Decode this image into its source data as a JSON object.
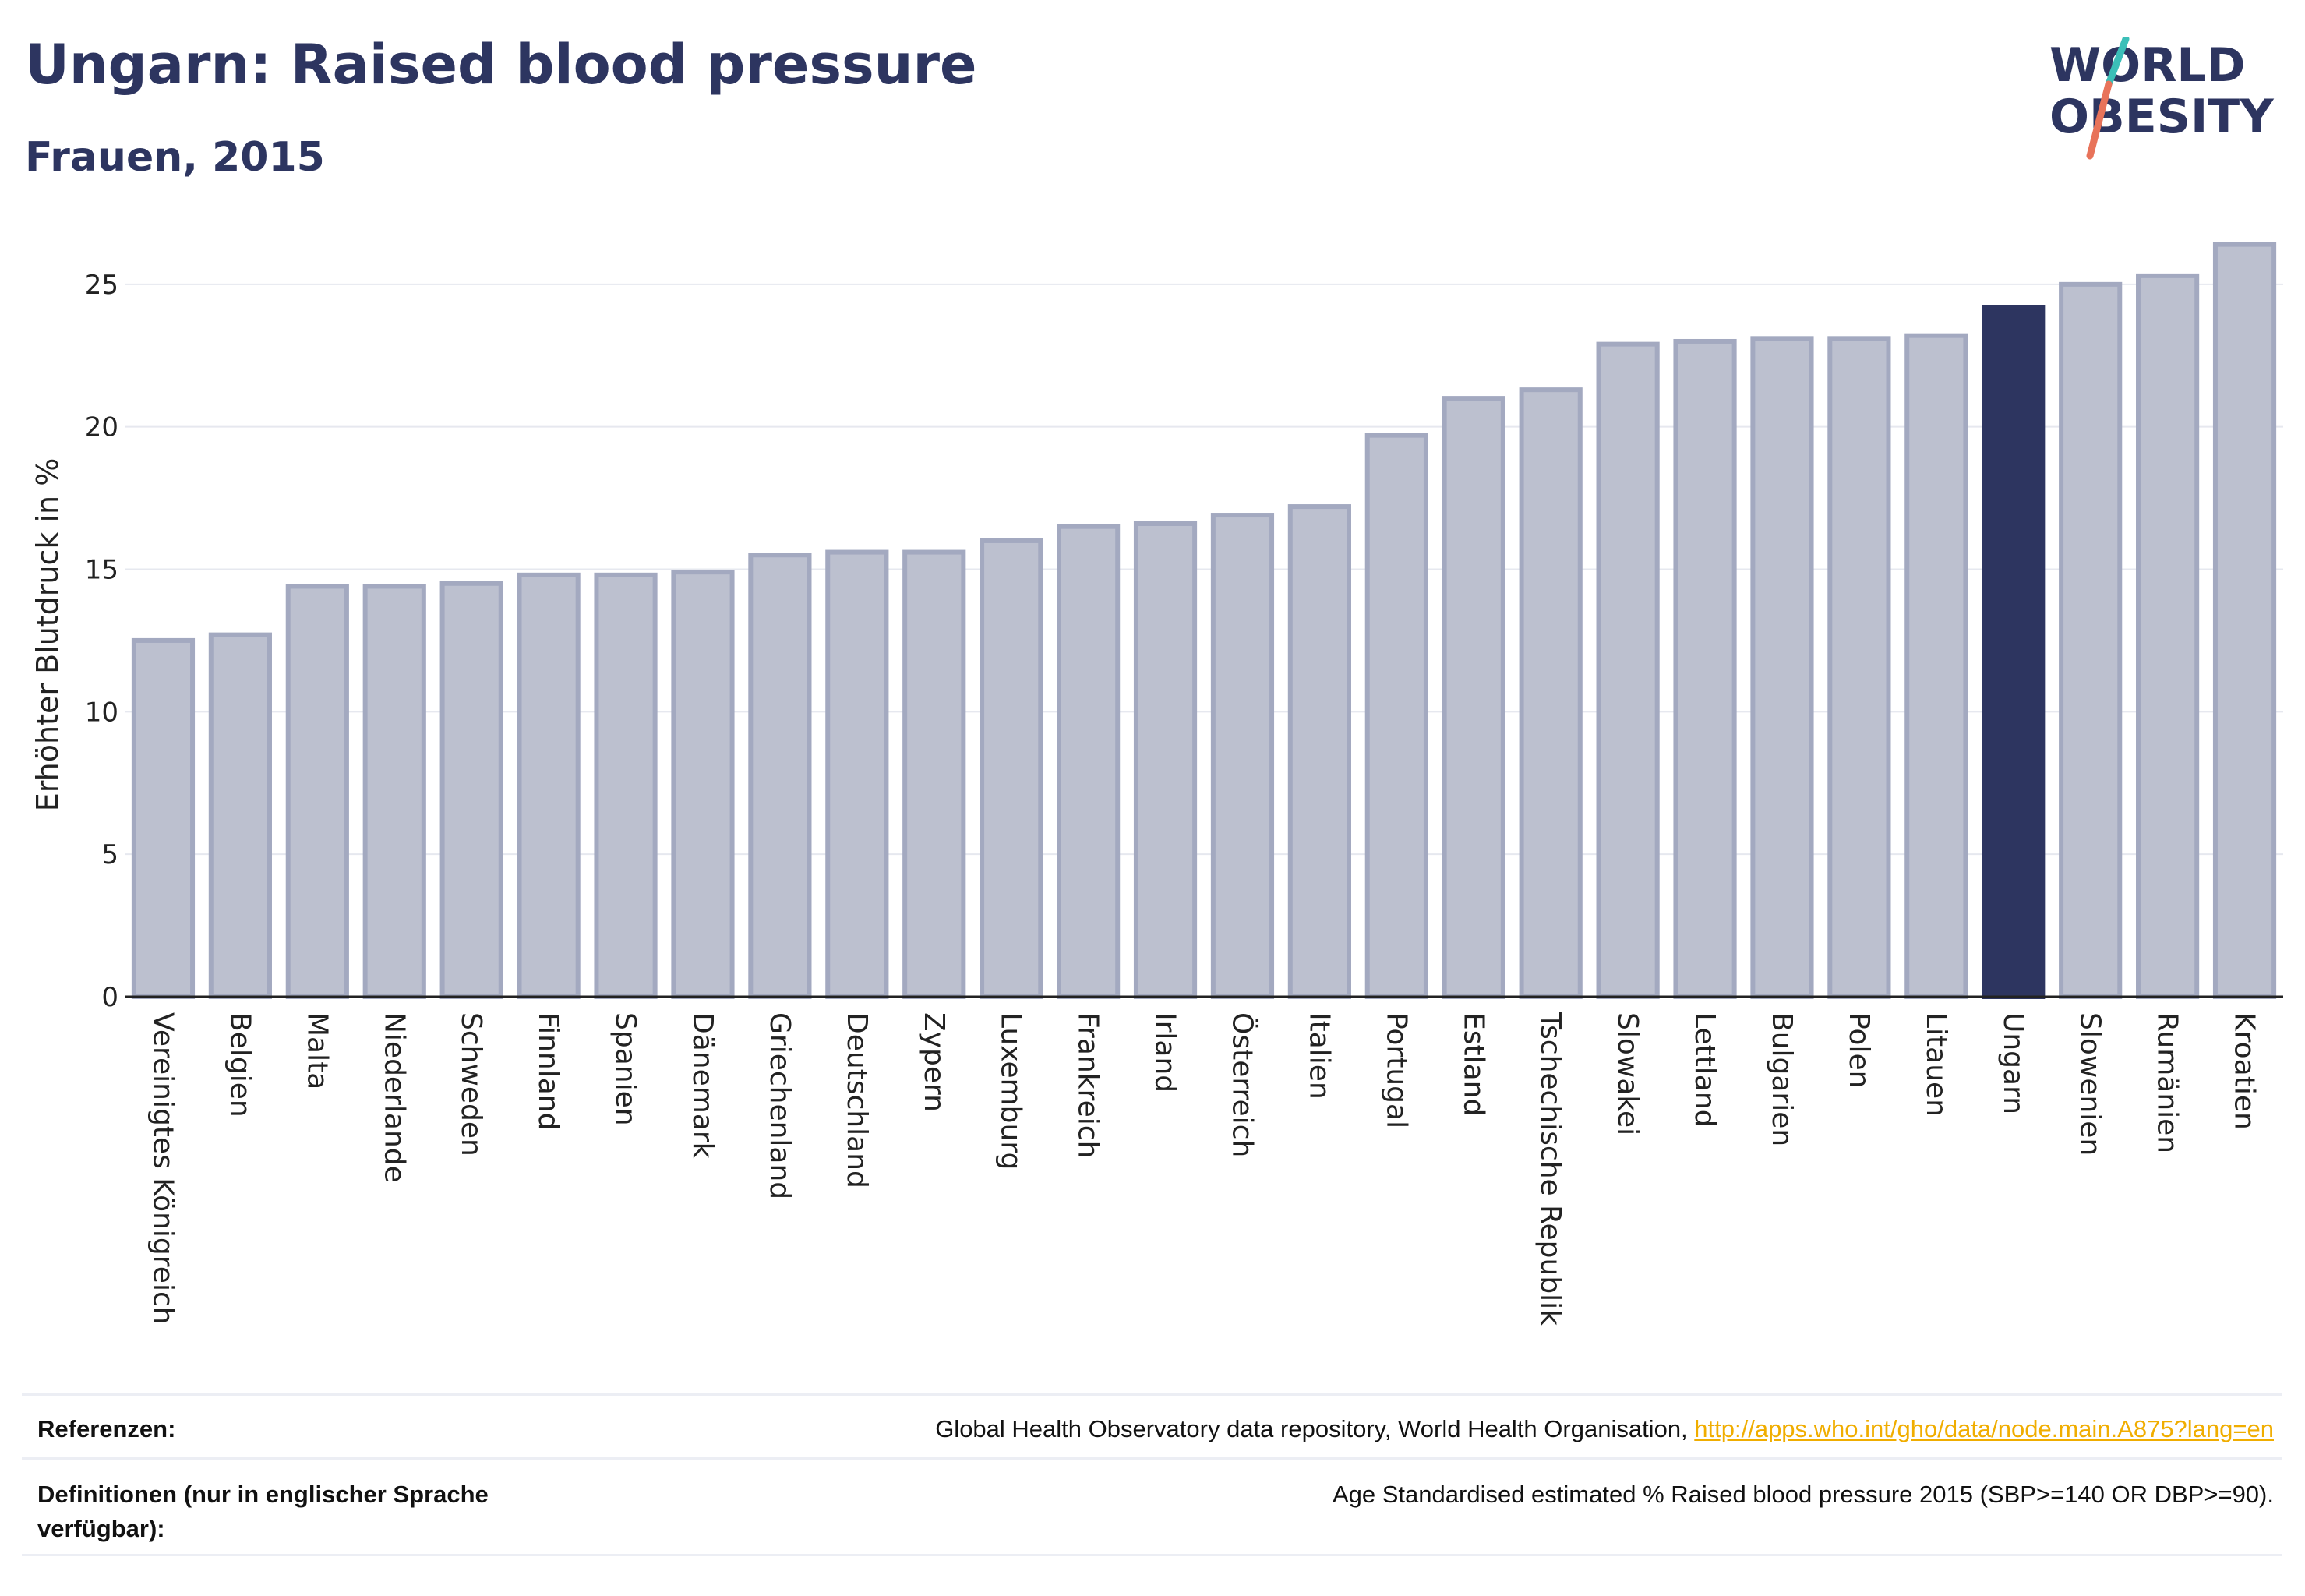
{
  "header": {
    "title": "Ungarn: Raised blood pressure",
    "subtitle": "Frauen, 2015"
  },
  "logo": {
    "line1": "WORLD",
    "line2": "OBESITY",
    "accent_colors": [
      "#3bbfb8",
      "#e8735a"
    ]
  },
  "chart_data": {
    "type": "bar",
    "title": "Ungarn: Raised blood pressure",
    "subtitle": "Frauen, 2015",
    "xlabel": "",
    "ylabel": "Erhöhter Blutdruck in %",
    "ylim": [
      0,
      26.5
    ],
    "yticks": [
      0,
      5,
      10,
      15,
      20,
      25
    ],
    "grid": true,
    "highlight": "Ungarn",
    "colors": {
      "bar": "#bcc0cf",
      "bar_edge": "#a3a9c0",
      "highlight": "#2d3560"
    },
    "categories": [
      "Vereinigtes Königreich",
      "Belgien",
      "Malta",
      "Niederlande",
      "Schweden",
      "Finnland",
      "Spanien",
      "Dänemark",
      "Griechenland",
      "Deutschland",
      "Zypern",
      "Luxemburg",
      "Frankreich",
      "Irland",
      "Österreich",
      "Italien",
      "Portugal",
      "Estland",
      "Tschechische Republik",
      "Slowakei",
      "Lettland",
      "Bulgarien",
      "Polen",
      "Litauen",
      "Ungarn",
      "Slowenien",
      "Rumänien",
      "Kroatien"
    ],
    "values": [
      12.5,
      12.7,
      14.4,
      14.4,
      14.5,
      14.8,
      14.8,
      14.9,
      15.5,
      15.6,
      15.6,
      16.0,
      16.5,
      16.6,
      16.9,
      17.2,
      19.7,
      21.0,
      21.3,
      22.9,
      23.0,
      23.1,
      23.1,
      23.2,
      24.2,
      25.0,
      25.3,
      26.4
    ]
  },
  "footer": {
    "references_label": "Referenzen:",
    "references_text": "Global Health Observatory data repository, World Health Organisation, ",
    "references_link": "http://apps.who.int/gho/data/node.main.A875?lang=en",
    "definitions_label": "Definitionen (nur in englischer Sprache verfügbar):",
    "definitions_text": "Age Standardised estimated % Raised blood pressure 2015 (SBP>=140 OR DBP>=90)."
  }
}
